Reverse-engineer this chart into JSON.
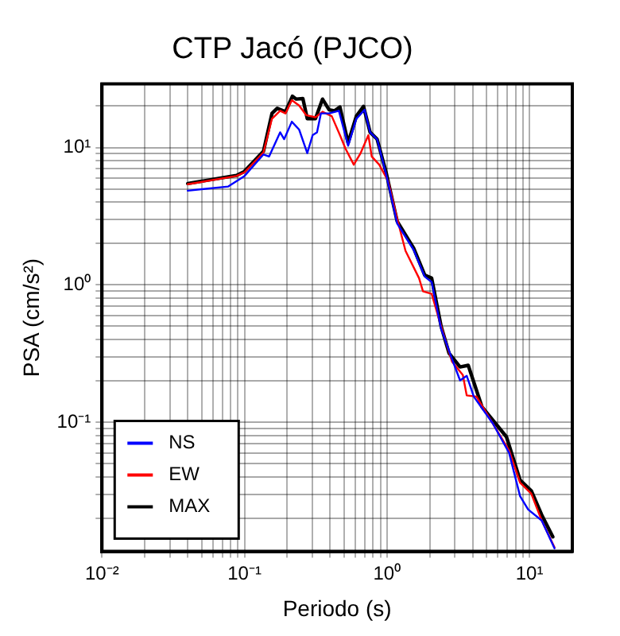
{
  "chart_data": {
    "type": "line",
    "title": "CTP Jacó (PJCO)",
    "xlabel": "Periodo (s)",
    "ylabel": "PSA (cm/s²)",
    "log": "xy",
    "grid": true,
    "legend": "bottom left",
    "marker": "none",
    "line_style": "solid",
    "xlim": [
      0.01,
      20
    ],
    "ylim": [
      0.0115,
      29
    ],
    "xticks": [
      {
        "value": 0.01,
        "label": "10⁻²"
      },
      {
        "value": 0.02,
        "label": null
      },
      {
        "value": 0.03,
        "label": null
      },
      {
        "value": 0.04,
        "label": null
      },
      {
        "value": 0.05,
        "label": null
      },
      {
        "value": 0.06,
        "label": null
      },
      {
        "value": 0.07,
        "label": null
      },
      {
        "value": 0.08,
        "label": null
      },
      {
        "value": 0.09,
        "label": null
      },
      {
        "value": 0.1,
        "label": "10⁻¹"
      },
      {
        "value": 0.2,
        "label": null
      },
      {
        "value": 0.3,
        "label": null
      },
      {
        "value": 0.4,
        "label": null
      },
      {
        "value": 0.5,
        "label": null
      },
      {
        "value": 0.6,
        "label": null
      },
      {
        "value": 0.7,
        "label": null
      },
      {
        "value": 0.8,
        "label": null
      },
      {
        "value": 0.9,
        "label": null
      },
      {
        "value": 1,
        "label": "10⁰"
      },
      {
        "value": 2,
        "label": null
      },
      {
        "value": 3,
        "label": null
      },
      {
        "value": 4,
        "label": null
      },
      {
        "value": 5,
        "label": null
      },
      {
        "value": 6,
        "label": null
      },
      {
        "value": 7,
        "label": null
      },
      {
        "value": 8,
        "label": null
      },
      {
        "value": 9,
        "label": null
      },
      {
        "value": 10,
        "label": "10¹"
      }
    ],
    "yticks": [
      {
        "value": 0.02,
        "label": null
      },
      {
        "value": 0.03,
        "label": null
      },
      {
        "value": 0.04,
        "label": null
      },
      {
        "value": 0.05,
        "label": null
      },
      {
        "value": 0.06,
        "label": null
      },
      {
        "value": 0.07,
        "label": null
      },
      {
        "value": 0.08,
        "label": null
      },
      {
        "value": 0.09,
        "label": null
      },
      {
        "value": 0.1,
        "label": "10⁻¹"
      },
      {
        "value": 0.2,
        "label": null
      },
      {
        "value": 0.3,
        "label": null
      },
      {
        "value": 0.4,
        "label": null
      },
      {
        "value": 0.5,
        "label": null
      },
      {
        "value": 0.6,
        "label": null
      },
      {
        "value": 0.7,
        "label": null
      },
      {
        "value": 0.8,
        "label": null
      },
      {
        "value": 0.9,
        "label": null
      },
      {
        "value": 1,
        "label": "10⁰"
      },
      {
        "value": 2,
        "label": null
      },
      {
        "value": 3,
        "label": null
      },
      {
        "value": 4,
        "label": null
      },
      {
        "value": 5,
        "label": null
      },
      {
        "value": 6,
        "label": null
      },
      {
        "value": 7,
        "label": null
      },
      {
        "value": 8,
        "label": null
      },
      {
        "value": 9,
        "label": null
      },
      {
        "value": 10,
        "label": "10¹"
      },
      {
        "value": 20,
        "label": null
      }
    ],
    "series": [
      {
        "name": "NS",
        "color": "#0000ff",
        "x": [
          0.04,
          0.077,
          0.1,
          0.136,
          0.149,
          0.178,
          0.19,
          0.215,
          0.242,
          0.276,
          0.301,
          0.323,
          0.344,
          0.393,
          0.46,
          0.534,
          0.61,
          0.697,
          0.762,
          0.853,
          0.99,
          1.18,
          1.54,
          1.84,
          2.06,
          2.4,
          2.86,
          3.26,
          3.63,
          4.07,
          5.54,
          7.2,
          8.6,
          9.8,
          12.2,
          15
        ],
        "values": [
          4.85,
          5.2,
          6.2,
          8.9,
          8.6,
          12.9,
          11.5,
          15.4,
          13.5,
          9.1,
          12.3,
          12.9,
          17.7,
          17.7,
          18.5,
          10.3,
          16.2,
          18.8,
          12.9,
          11.5,
          6.3,
          2.8,
          1.8,
          1.15,
          1.05,
          0.48,
          0.29,
          0.202,
          0.218,
          0.154,
          0.098,
          0.06,
          0.029,
          0.0232,
          0.0193,
          0.0121
        ]
      },
      {
        "name": "EW",
        "color": "#ff0000",
        "x": [
          0.04,
          0.088,
          0.1,
          0.136,
          0.156,
          0.178,
          0.194,
          0.215,
          0.242,
          0.271,
          0.315,
          0.353,
          0.41,
          0.468,
          0.512,
          0.585,
          0.65,
          0.741,
          0.782,
          0.883,
          1.02,
          1.18,
          1.35,
          1.68,
          1.79,
          2.06,
          2.4,
          2.86,
          3.41,
          3.63,
          4.25,
          5.54,
          7.2,
          8.6,
          10.3,
          12.2,
          15
        ],
        "values": [
          5.4,
          6.2,
          6.6,
          9.2,
          16.2,
          18.5,
          17.7,
          22.1,
          20.2,
          17.2,
          16.6,
          18.2,
          16.9,
          12.3,
          9.8,
          7.5,
          9,
          12.3,
          8.6,
          7.5,
          5.7,
          3.03,
          1.77,
          1.12,
          0.9,
          0.86,
          0.5,
          0.277,
          0.221,
          0.157,
          0.154,
          0.098,
          0.0625,
          0.0364,
          0.0303,
          0.0193,
          0.0123
        ]
      },
      {
        "name": "MAX",
        "color": "#000000",
        "x": [
          0.04,
          0.088,
          0.1,
          0.136,
          0.156,
          0.17,
          0.194,
          0.217,
          0.231,
          0.257,
          0.276,
          0.315,
          0.353,
          0.393,
          0.429,
          0.468,
          0.534,
          0.61,
          0.685,
          0.762,
          0.853,
          0.99,
          1.18,
          1.54,
          1.84,
          2.06,
          2.4,
          2.73,
          3.26,
          3.72,
          4.64,
          6.9,
          8.6,
          10.3,
          12.2,
          14.6
        ],
        "values": [
          5.47,
          6.26,
          6.7,
          9.4,
          17.7,
          19.3,
          18.2,
          23.6,
          22.5,
          22.7,
          16.2,
          16.2,
          22.5,
          18.8,
          18.5,
          19.7,
          10.8,
          16.9,
          19.9,
          12.9,
          11.5,
          6.5,
          2.9,
          1.85,
          1.18,
          1.12,
          0.5,
          0.318,
          0.253,
          0.26,
          0.13,
          0.0784,
          0.038,
          0.0318,
          0.0212,
          0.0147
        ]
      }
    ]
  }
}
